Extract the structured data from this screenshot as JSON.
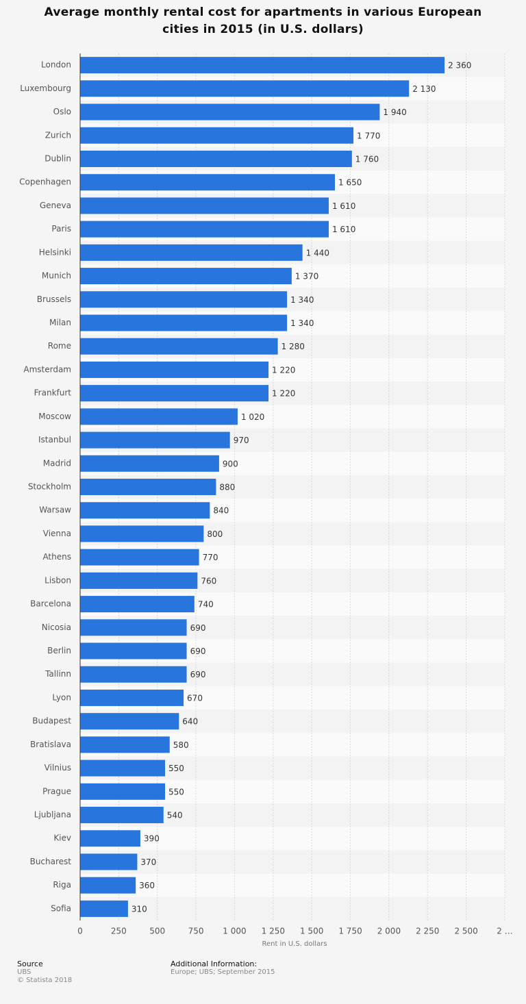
{
  "chart_data": {
    "type": "barh",
    "title": "Average monthly rental cost for apartments in various European cities in 2015 (in U.S. dollars)",
    "x_label": "Rent in U.S. dollars",
    "categories": [
      "London",
      "Luxembourg",
      "Oslo",
      "Zurich",
      "Dublin",
      "Copenhagen",
      "Geneva",
      "Paris",
      "Helsinki",
      "Munich",
      "Brussels",
      "Milan",
      "Rome",
      "Amsterdam",
      "Frankfurt",
      "Moscow",
      "Istanbul",
      "Madrid",
      "Stockholm",
      "Warsaw",
      "Vienna",
      "Athens",
      "Lisbon",
      "Barcelona",
      "Nicosia",
      "Berlin",
      "Tallinn",
      "Lyon",
      "Budapest",
      "Bratislava",
      "Vilnius",
      "Prague",
      "Ljubljana",
      "Kiev",
      "Bucharest",
      "Riga",
      "Sofia"
    ],
    "values": [
      2360,
      2130,
      1940,
      1770,
      1760,
      1650,
      1610,
      1610,
      1440,
      1370,
      1340,
      1340,
      1280,
      1220,
      1220,
      1020,
      970,
      900,
      880,
      840,
      800,
      770,
      760,
      740,
      690,
      690,
      690,
      670,
      640,
      580,
      550,
      550,
      540,
      390,
      370,
      360,
      310
    ],
    "value_labels": [
      "2 360",
      "2 130",
      "1 940",
      "1 770",
      "1 760",
      "1 650",
      "1 610",
      "1 610",
      "1 440",
      "1 370",
      "1 340",
      "1 340",
      "1 280",
      "1 220",
      "1 220",
      "1 020",
      "970",
      "900",
      "880",
      "840",
      "800",
      "770",
      "760",
      "740",
      "690",
      "690",
      "690",
      "670",
      "640",
      "580",
      "550",
      "550",
      "540",
      "390",
      "370",
      "360",
      "310"
    ],
    "color": "#2876dd",
    "xlim": [
      0,
      2750
    ],
    "xticks": [
      0,
      250,
      500,
      750,
      {
        "value": 1000,
        "label": "1 000"
      },
      {
        "value": 1250,
        "label": "1 250"
      },
      {
        "value": 1500,
        "label": "1 500"
      },
      {
        "value": 1750,
        "label": "1 750"
      },
      {
        "value": 2000,
        "label": "2 000"
      },
      {
        "value": 2250,
        "label": "2 250"
      },
      {
        "value": 2500,
        "label": "2 500"
      },
      {
        "value": 2750,
        "label": "2 …"
      }
    ],
    "grid": true
  },
  "source": {
    "heading": "Source",
    "name": "UBS",
    "copyright": "© Statista 2018"
  },
  "additional_info": {
    "heading": "Additional Information:",
    "text": "Europe; UBS; September 2015"
  }
}
